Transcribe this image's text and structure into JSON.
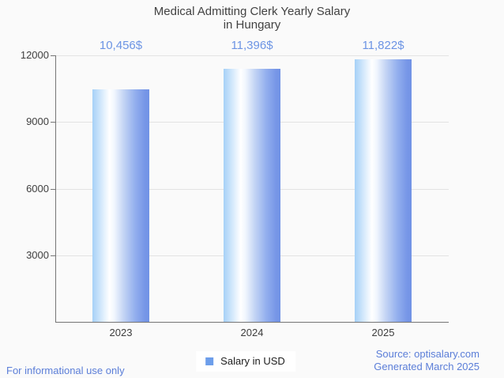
{
  "page": {
    "background": "#fafafa"
  },
  "title": {
    "line1": "Medical Admitting Clerk Yearly Salary",
    "line2": "in Hungary"
  },
  "chart_data": {
    "type": "bar",
    "title": "Medical Admitting Clerk Yearly Salary in Hungary",
    "categories": [
      "2023",
      "2024",
      "2025"
    ],
    "series": [
      {
        "name": "Salary in USD",
        "values": [
          10456,
          11396,
          11822
        ]
      }
    ],
    "value_labels": [
      "10,456$",
      "11,396$",
      "11,822$"
    ],
    "xlabel": "",
    "ylabel": "",
    "ylim": [
      0,
      12000
    ],
    "yticks": [
      3000,
      6000,
      9000,
      12000
    ],
    "grid": true,
    "legend_position": "bottom",
    "bar_gradient": [
      "#a6d1f7",
      "#ffffff",
      "#7193e5"
    ],
    "annotation_color": "#6c94e4",
    "axis_color": "#757575",
    "gridline_color": "#e3e3e3"
  },
  "legend": {
    "label": "Salary in USD",
    "swatch_color": "#6d9eeb"
  },
  "footer": {
    "left": "For informational use only",
    "source": "Source: optisalary.com",
    "generated": "Generated March 2025"
  }
}
